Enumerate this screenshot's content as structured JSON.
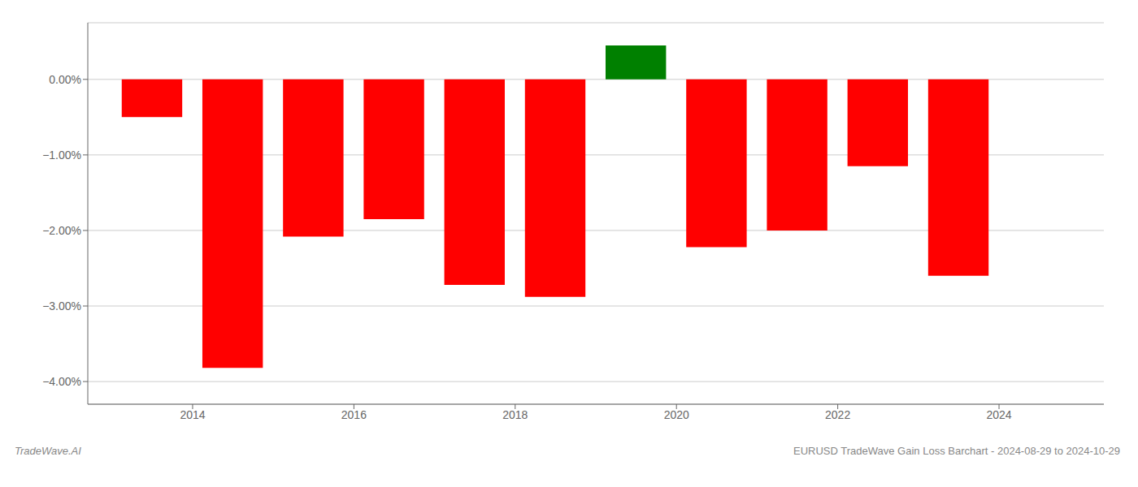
{
  "chart_data": {
    "type": "bar",
    "x": [
      2013.5,
      2014.5,
      2015.5,
      2016.5,
      2017.5,
      2018.5,
      2019.5,
      2020.5,
      2021.5,
      2022.5,
      2023.5
    ],
    "values": [
      -0.5,
      -3.82,
      -2.08,
      -1.85,
      -2.72,
      -2.88,
      0.45,
      -2.22,
      -2.0,
      -1.15,
      -2.6
    ],
    "colors": [
      "#ff0000",
      "#ff0000",
      "#ff0000",
      "#ff0000",
      "#ff0000",
      "#ff0000",
      "#008000",
      "#ff0000",
      "#ff0000",
      "#ff0000",
      "#ff0000"
    ],
    "xlim": [
      2012.7,
      2025.3
    ],
    "ylim": [
      -4.3,
      0.75
    ],
    "yticks": [
      {
        "value": 0.0,
        "label": "0.00%"
      },
      {
        "value": -1.0,
        "label": "−1.00%"
      },
      {
        "value": -2.0,
        "label": "−2.00%"
      },
      {
        "value": -3.0,
        "label": "−3.00%"
      },
      {
        "value": -4.0,
        "label": "−4.00%"
      }
    ],
    "xticks": [
      2014,
      2016,
      2018,
      2020,
      2022,
      2024
    ],
    "grid": true,
    "annotations": [
      "TradeWave.AI",
      "EURUSD TradeWave Gain Loss Barchart - 2024-08-29 to 2024-10-29"
    ]
  }
}
